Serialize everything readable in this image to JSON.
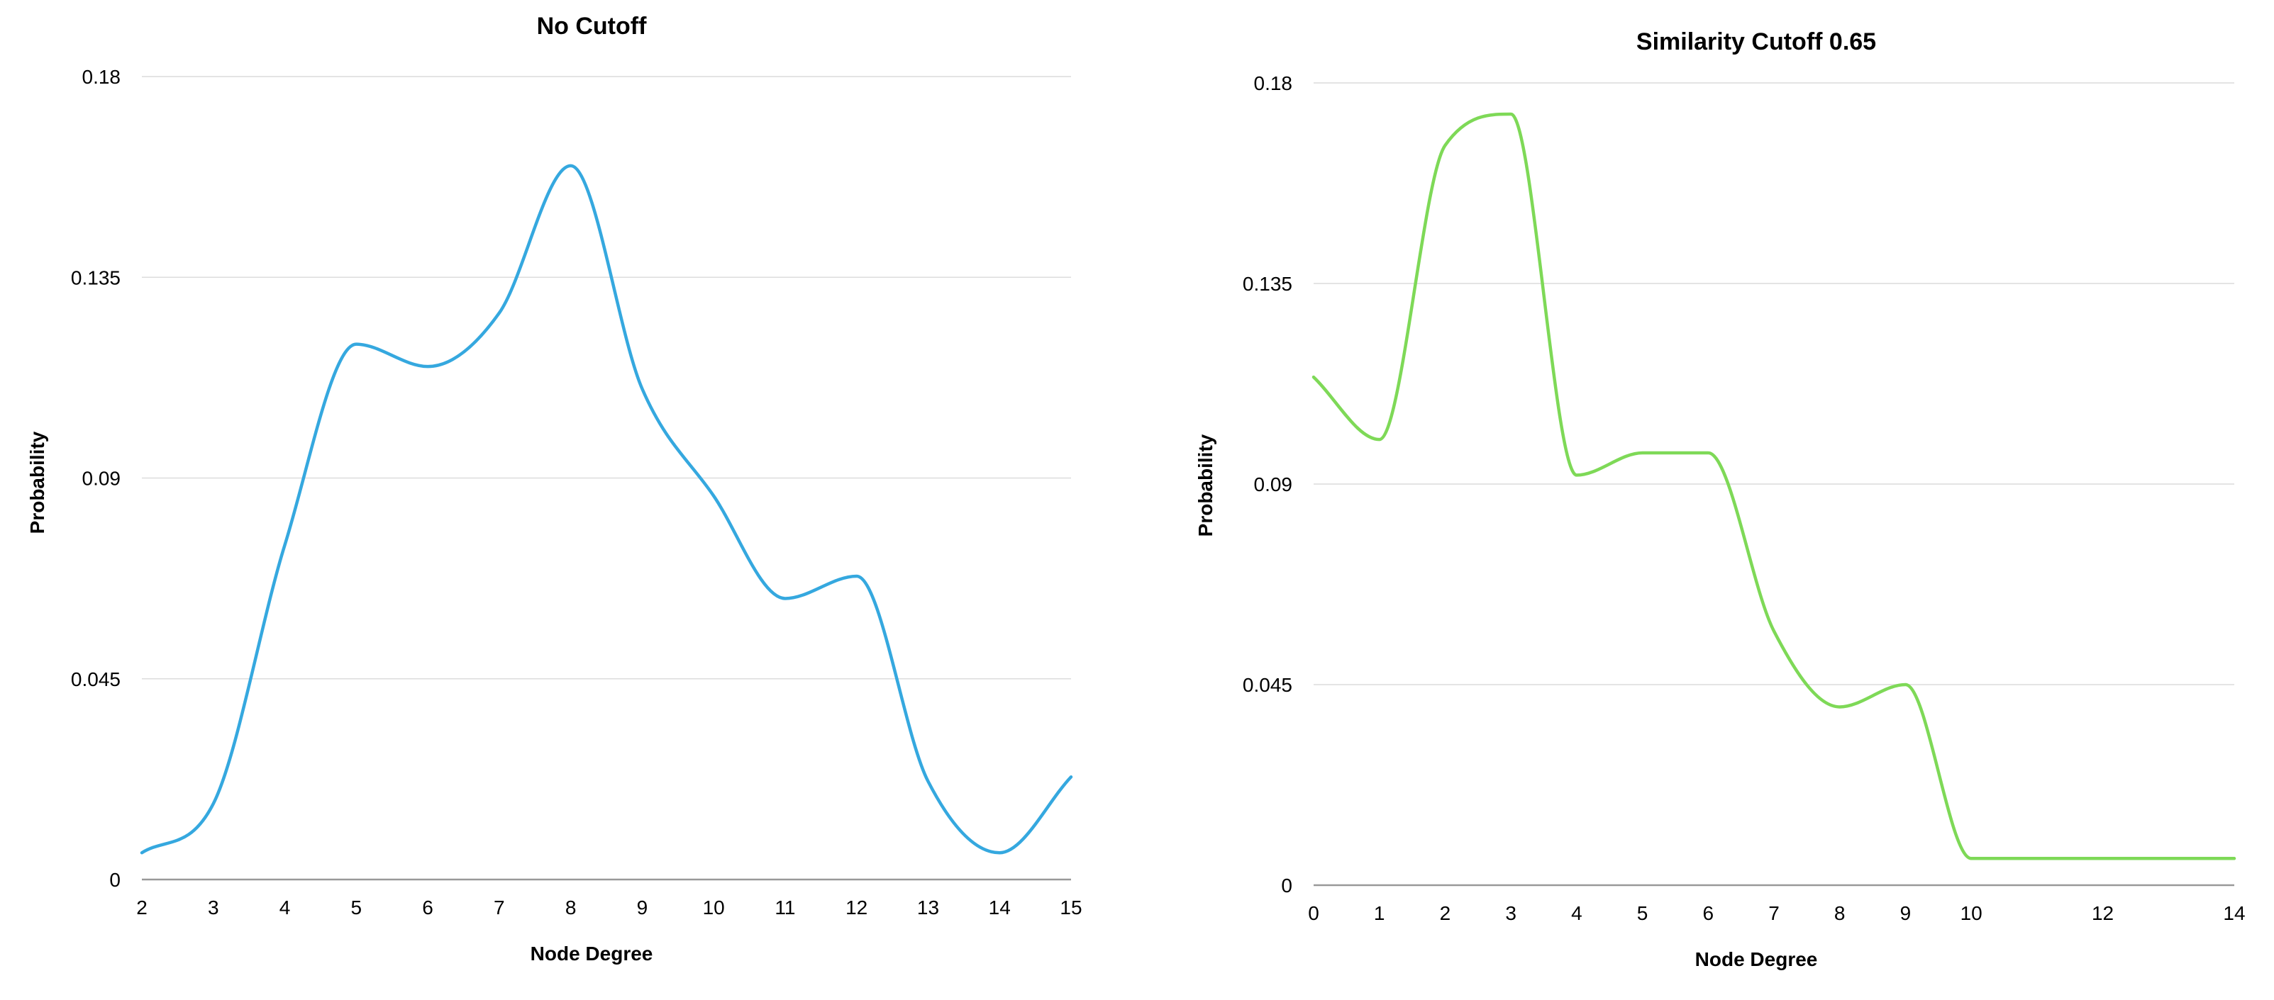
{
  "chart_data": [
    {
      "type": "line",
      "title": "No Cutoff",
      "xlabel": "Node Degree",
      "ylabel": "Probability",
      "xlim": [
        2,
        15
      ],
      "ylim": [
        0,
        0.18
      ],
      "x_ticks": [
        "2",
        "3",
        "4",
        "5",
        "6",
        "7",
        "8",
        "9",
        "10",
        "11",
        "12",
        "13",
        "14",
        "15"
      ],
      "y_ticks": [
        "0",
        "0.045",
        "0.09",
        "0.135",
        "0.18"
      ],
      "grid": true,
      "color": "#35a8df",
      "series": [
        {
          "x": [
            2,
            3,
            4,
            5,
            6,
            7,
            8,
            9,
            10,
            11,
            12,
            13,
            14,
            15
          ],
          "values": [
            0.006,
            0.017,
            0.075,
            0.12,
            0.115,
            0.127,
            0.16,
            0.11,
            0.086,
            0.063,
            0.068,
            0.022,
            0.006,
            0.023
          ]
        }
      ]
    },
    {
      "type": "line",
      "title": "Similarity Cutoff 0.65",
      "xlabel": "Node Degree",
      "ylabel": "Probability",
      "xlim": [
        0,
        14
      ],
      "ylim": [
        0,
        0.18
      ],
      "x_ticks": [
        "0",
        "1",
        "2",
        "3",
        "4",
        "5",
        "6",
        "7",
        "8",
        "9",
        "10",
        "12",
        "14"
      ],
      "y_ticks": [
        "0",
        "0.045",
        "0.09",
        "0.135",
        "0.18"
      ],
      "grid": true,
      "color": "#7ed957",
      "series": [
        {
          "x": [
            0,
            1,
            2,
            3,
            4,
            5,
            6,
            7,
            8,
            9,
            10,
            12,
            14
          ],
          "values": [
            0.114,
            0.1,
            0.166,
            0.173,
            0.092,
            0.097,
            0.097,
            0.057,
            0.04,
            0.045,
            0.006,
            0.006,
            0.006
          ]
        }
      ]
    }
  ]
}
